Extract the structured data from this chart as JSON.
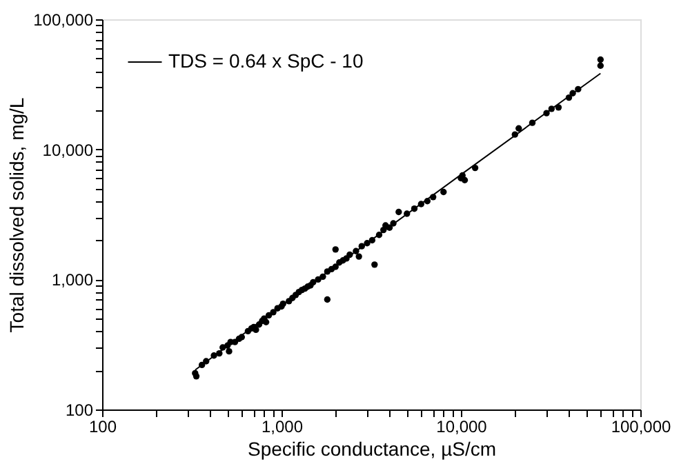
{
  "chart_data": {
    "type": "scatter",
    "xlabel": "Specific conductance, µS/cm",
    "ylabel": "Total dissolved solids, mg/L",
    "log": "xy",
    "grid": false,
    "legend": "top left",
    "marker": "circle",
    "xlim": [
      100,
      100000
    ],
    "ylim": [
      100,
      100000
    ],
    "xticks": [
      {
        "value": 100,
        "label": "100"
      },
      {
        "value": 200,
        "label": null
      },
      {
        "value": 300,
        "label": null
      },
      {
        "value": 400,
        "label": null
      },
      {
        "value": 500,
        "label": null
      },
      {
        "value": 600,
        "label": null
      },
      {
        "value": 700,
        "label": null
      },
      {
        "value": 800,
        "label": null
      },
      {
        "value": 900,
        "label": null
      },
      {
        "value": 1000,
        "label": "1,000"
      },
      {
        "value": 2000,
        "label": null
      },
      {
        "value": 3000,
        "label": null
      },
      {
        "value": 4000,
        "label": null
      },
      {
        "value": 5000,
        "label": null
      },
      {
        "value": 6000,
        "label": null
      },
      {
        "value": 7000,
        "label": null
      },
      {
        "value": 8000,
        "label": null
      },
      {
        "value": 9000,
        "label": null
      },
      {
        "value": 10000,
        "label": "10,000"
      },
      {
        "value": 20000,
        "label": null
      },
      {
        "value": 30000,
        "label": null
      },
      {
        "value": 40000,
        "label": null
      },
      {
        "value": 50000,
        "label": null
      },
      {
        "value": 60000,
        "label": null
      },
      {
        "value": 70000,
        "label": null
      },
      {
        "value": 80000,
        "label": null
      },
      {
        "value": 90000,
        "label": null
      },
      {
        "value": 100000,
        "label": "100,000"
      }
    ],
    "yticks": [
      {
        "value": 100,
        "label": "100"
      },
      {
        "value": 200,
        "label": null
      },
      {
        "value": 300,
        "label": null
      },
      {
        "value": 400,
        "label": null
      },
      {
        "value": 500,
        "label": null
      },
      {
        "value": 600,
        "label": null
      },
      {
        "value": 700,
        "label": null
      },
      {
        "value": 800,
        "label": null
      },
      {
        "value": 900,
        "label": null
      },
      {
        "value": 1000,
        "label": "1,000"
      },
      {
        "value": 2000,
        "label": null
      },
      {
        "value": 3000,
        "label": null
      },
      {
        "value": 4000,
        "label": null
      },
      {
        "value": 5000,
        "label": null
      },
      {
        "value": 6000,
        "label": null
      },
      {
        "value": 7000,
        "label": null
      },
      {
        "value": 8000,
        "label": null
      },
      {
        "value": 9000,
        "label": null
      },
      {
        "value": 10000,
        "label": "10,000"
      },
      {
        "value": 20000,
        "label": null
      },
      {
        "value": 30000,
        "label": null
      },
      {
        "value": 40000,
        "label": null
      },
      {
        "value": 50000,
        "label": null
      },
      {
        "value": 60000,
        "label": null
      },
      {
        "value": 70000,
        "label": null
      },
      {
        "value": 80000,
        "label": null
      },
      {
        "value": 90000,
        "label": null
      },
      {
        "value": 100000,
        "label": "100,000"
      }
    ],
    "series": [
      {
        "color": "#000000",
        "x": [
          330,
          335,
          360,
          380,
          420,
          450,
          470,
          500,
          510,
          520,
          550,
          580,
          600,
          650,
          680,
          700,
          720,
          750,
          780,
          800,
          820,
          850,
          900,
          950,
          1000,
          1020,
          1100,
          1150,
          1200,
          1250,
          1300,
          1350,
          1400,
          1450,
          1500,
          1600,
          1700,
          1800,
          1800,
          1900,
          2000,
          2000,
          2100,
          2200,
          2300,
          2400,
          2600,
          2700,
          2800,
          3000,
          3200,
          3300,
          3500,
          3700,
          3800,
          4000,
          4200,
          4500,
          5000,
          5500,
          6000,
          6500,
          7000,
          8000,
          10000,
          10200,
          10500,
          12000,
          20000,
          21000,
          25000,
          30000,
          32000,
          35000,
          40000,
          42000,
          45000,
          60000,
          60000
        ],
        "values": [
          190,
          180,
          220,
          235,
          260,
          270,
          300,
          310,
          280,
          330,
          330,
          350,
          360,
          400,
          420,
          430,
          410,
          450,
          480,
          500,
          470,
          530,
          560,
          600,
          620,
          650,
          680,
          720,
          760,
          800,
          830,
          850,
          880,
          900,
          950,
          1000,
          1050,
          700,
          1150,
          1200,
          1250,
          1700,
          1350,
          1400,
          1450,
          1550,
          1650,
          1500,
          1800,
          1900,
          2000,
          1300,
          2200,
          2400,
          2600,
          2500,
          2700,
          3300,
          3200,
          3500,
          3800,
          4000,
          4300,
          4700,
          6000,
          6300,
          5800,
          7200,
          13000,
          14500,
          16000,
          19000,
          20500,
          21000,
          25000,
          27000,
          29000,
          44000,
          49000
        ]
      },
      {
        "type": "line",
        "name": "TDS = 0.64 x SpC - 10",
        "color": "#000000",
        "line_style": "solid",
        "marker": "none",
        "x": [
          330,
          1000,
          10000,
          60000
        ],
        "values": [
          201,
          630,
          6390,
          38390
        ]
      }
    ]
  }
}
